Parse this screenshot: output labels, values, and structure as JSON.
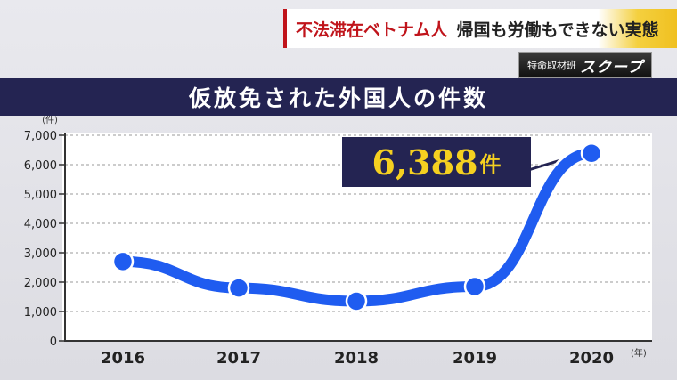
{
  "caption": {
    "left": "不法滞在ベトナム人",
    "right": "帰国も労働もできない実態"
  },
  "badge": {
    "small": "特命取材班",
    "big": "スクープ"
  },
  "chart_data": {
    "type": "line",
    "title": "仮放免された外国人の件数",
    "y_unit": "(件)",
    "x_unit": "(年)",
    "categories": [
      "2016",
      "2017",
      "2018",
      "2019",
      "2020"
    ],
    "values": [
      2700,
      1800,
      1350,
      1850,
      6388
    ],
    "ylim": [
      0,
      7000
    ],
    "yticks": [
      0,
      1000,
      2000,
      3000,
      4000,
      5000,
      6000,
      7000
    ],
    "ytick_labels": [
      "0",
      "1,000",
      "2,000",
      "3,000",
      "4,000",
      "5,000",
      "6,000",
      "7,000"
    ],
    "grid": true,
    "line_color": "#1f5cf0",
    "highlight": {
      "number": "6,388",
      "unit": "件"
    }
  }
}
